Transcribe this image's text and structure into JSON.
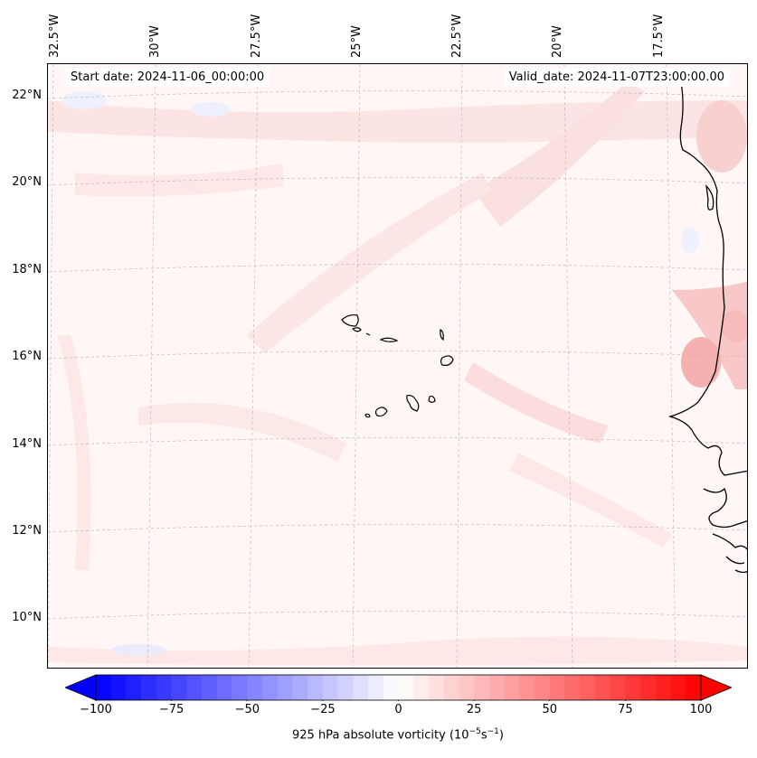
{
  "header": {
    "start_date": "Start date: 2024-11-06_00:00:00",
    "valid_date": "Valid_date: 2024-11-07T23:00:00.00"
  },
  "axes": {
    "lat_labels": [
      "22°N",
      "20°N",
      "18°N",
      "16°N",
      "14°N",
      "12°N",
      "10°N"
    ],
    "lon_labels": [
      "32.5°W",
      "30°W",
      "27.5°W",
      "25°W",
      "22.5°W",
      "20°W",
      "17.5°W"
    ]
  },
  "colorbar": {
    "label_prefix": "925 hPa absolute vorticity (10",
    "label_exp1": "−5",
    "label_mid": "s",
    "label_exp2": "−1",
    "label_suffix": ")",
    "ticks": [
      "−100",
      "−75",
      "−50",
      "−25",
      "0",
      "25",
      "50",
      "75",
      "100"
    ],
    "min": -100,
    "max": 100,
    "low_color": "#0000ff",
    "high_color": "#ff0000",
    "mid_color": "#ffffff"
  },
  "colors": {
    "background_field": "#fff6f6",
    "coastline": "#000000",
    "gridline": "#b0b0b0"
  }
}
